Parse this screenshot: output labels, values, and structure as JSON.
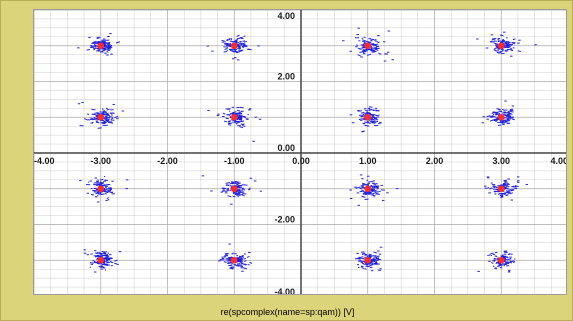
{
  "chart_data": {
    "type": "scatter",
    "title": "",
    "xlabel": "re(spcomplex(name=sp:qam)) [V]",
    "ylabel": "",
    "xlim": [
      -4,
      4
    ],
    "ylim": [
      -4,
      4
    ],
    "grid": true,
    "x_ticks": [
      -4,
      -3,
      -2,
      -1,
      0,
      1,
      2,
      3,
      4
    ],
    "y_ticks": [
      -4,
      -2,
      0,
      2,
      4
    ],
    "x_tick_labels": [
      "-4.00",
      "-3.00",
      "-2.00",
      "-1.00",
      "0.00",
      "1.00",
      "2.00",
      "3.00",
      "4.00"
    ],
    "y_tick_labels": [
      "-4.00",
      "-2.00",
      "0.00",
      "2.00",
      "4.00"
    ],
    "series": [
      {
        "kind": "constellation-points",
        "points": [
          {
            "x": -3,
            "y": 3
          },
          {
            "x": -1,
            "y": 3
          },
          {
            "x": 1,
            "y": 3
          },
          {
            "x": 3,
            "y": 3
          },
          {
            "x": -3,
            "y": 1
          },
          {
            "x": -1,
            "y": 1
          },
          {
            "x": 1,
            "y": 1
          },
          {
            "x": 3,
            "y": 1
          },
          {
            "x": -3,
            "y": -1
          },
          {
            "x": -1,
            "y": -1
          },
          {
            "x": 1,
            "y": -1
          },
          {
            "x": 3,
            "y": -1
          },
          {
            "x": -3,
            "y": -3
          },
          {
            "x": -1,
            "y": -3
          },
          {
            "x": 1,
            "y": -3
          },
          {
            "x": 3,
            "y": -3
          }
        ]
      }
    ],
    "colors": {
      "scatter": "#1d1de0",
      "center": "#ff2a2a",
      "grid": "#a7a7a7",
      "axis": "#444444",
      "background": "#ffffff",
      "frame": "#dcd47a"
    }
  }
}
